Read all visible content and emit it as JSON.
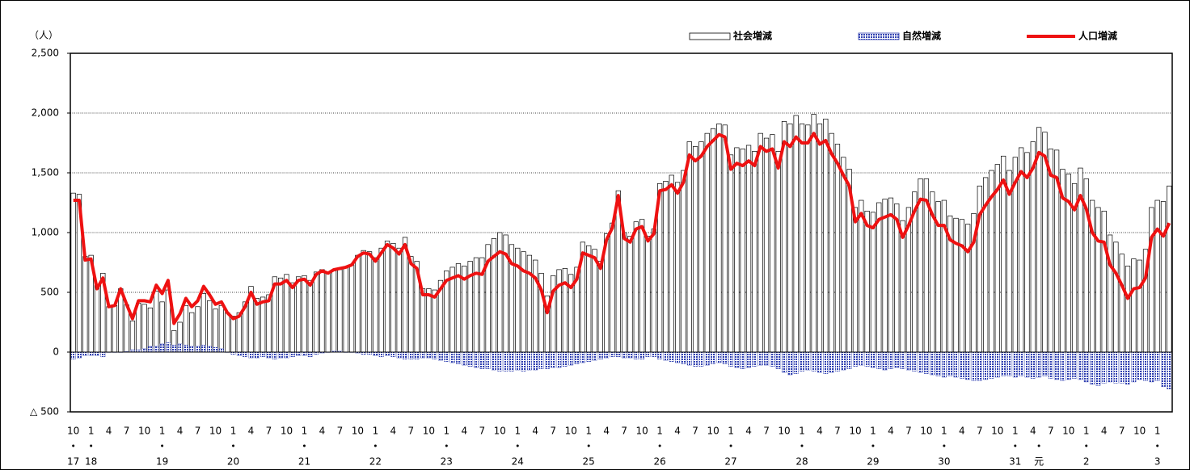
{
  "chart_data": {
    "type": "bar_line",
    "y_axis_label": "（人）",
    "categories": [
      "10",
      null,
      null,
      "1",
      null,
      null,
      "4",
      null,
      null,
      "7",
      null,
      null,
      "10",
      null,
      null,
      "1",
      null,
      null,
      "4",
      null,
      null,
      "7",
      null,
      null,
      "10",
      null,
      null,
      "1",
      null,
      null,
      "4",
      null,
      null,
      "7",
      null,
      null,
      "10",
      null,
      null,
      "1",
      null,
      null,
      "4",
      null,
      null,
      "7",
      null,
      null,
      "10",
      null,
      null,
      "1",
      null,
      null,
      "4",
      null,
      null,
      "7",
      null,
      null,
      "10",
      null,
      null,
      "1",
      null,
      null,
      "4",
      null,
      null,
      "7",
      null,
      null,
      "10",
      null,
      null,
      "1",
      null,
      null,
      "4",
      null,
      null,
      "7",
      null,
      null,
      "10",
      null,
      null,
      "1",
      null,
      null,
      "4",
      null,
      null,
      "7",
      null,
      null,
      "10",
      null,
      null,
      "1",
      null,
      null,
      "4",
      null,
      null,
      "7",
      null,
      null,
      "10",
      null,
      null,
      "1",
      null,
      null,
      "4",
      null,
      null,
      "7",
      null,
      null,
      "10",
      null,
      null,
      "1",
      null,
      null,
      "4",
      null,
      null,
      "7",
      null,
      null,
      "10",
      null,
      null,
      "1",
      null,
      null,
      "4",
      null,
      null,
      "7",
      null,
      null,
      "10",
      null,
      null,
      "1",
      null,
      null,
      "4",
      null,
      null,
      "7",
      null,
      null,
      "10",
      null,
      null,
      "1",
      null,
      null,
      "4",
      null,
      null,
      "7",
      null,
      null,
      "10",
      null,
      null,
      "1",
      null,
      null,
      "4",
      null,
      null,
      "7",
      null,
      null,
      "10",
      null,
      null,
      "1",
      null,
      null
    ],
    "year_labels": [
      "17",
      null,
      null,
      "18",
      null,
      null,
      null,
      null,
      null,
      null,
      null,
      null,
      null,
      null,
      null,
      "19",
      null,
      null,
      null,
      null,
      null,
      null,
      null,
      null,
      null,
      null,
      null,
      "20",
      null,
      null,
      null,
      null,
      null,
      null,
      null,
      null,
      null,
      null,
      null,
      "21",
      null,
      null,
      null,
      null,
      null,
      null,
      null,
      null,
      null,
      null,
      null,
      "22",
      null,
      null,
      null,
      null,
      null,
      null,
      null,
      null,
      null,
      null,
      null,
      "23",
      null,
      null,
      null,
      null,
      null,
      null,
      null,
      null,
      null,
      null,
      null,
      "24",
      null,
      null,
      null,
      null,
      null,
      null,
      null,
      null,
      null,
      null,
      null,
      "25",
      null,
      null,
      null,
      null,
      null,
      null,
      null,
      null,
      null,
      null,
      null,
      "26",
      null,
      null,
      null,
      null,
      null,
      null,
      null,
      null,
      null,
      null,
      null,
      "27",
      null,
      null,
      null,
      null,
      null,
      null,
      null,
      null,
      null,
      null,
      null,
      "28",
      null,
      null,
      null,
      null,
      null,
      null,
      null,
      null,
      null,
      null,
      null,
      "29",
      null,
      null,
      null,
      null,
      null,
      null,
      null,
      null,
      null,
      null,
      null,
      "30",
      null,
      null,
      null,
      null,
      null,
      null,
      null,
      null,
      null,
      null,
      null,
      "31",
      null,
      null,
      null,
      "元",
      null,
      null,
      null,
      null,
      null,
      null,
      null,
      "2",
      null,
      null,
      null,
      null,
      null,
      null,
      null,
      null,
      null,
      null,
      null,
      "3",
      null,
      null
    ],
    "series": [
      {
        "name": "社会増減",
        "kind": "bar",
        "color": "#ffffff",
        "values": [
          1330,
          1320,
          800,
          810,
          560,
          660,
          380,
          390,
          530,
          395,
          260,
          410,
          400,
          370,
          510,
          420,
          520,
          180,
          250,
          390,
          330,
          380,
          490,
          430,
          360,
          390,
          330,
          300,
          330,
          420,
          550,
          450,
          460,
          480,
          630,
          620,
          650,
          580,
          630,
          640,
          600,
          670,
          690,
          660,
          680,
          690,
          710,
          730,
          810,
          850,
          840,
          790,
          870,
          930,
          910,
          870,
          960,
          800,
          760,
          530,
          530,
          520,
          600,
          680,
          710,
          740,
          720,
          760,
          790,
          790,
          900,
          950,
          1000,
          980,
          900,
          870,
          840,
          810,
          770,
          660,
          470,
          640,
          690,
          700,
          650,
          710,
          920,
          890,
          860,
          760,
          990,
          1080,
          1350,
          1000,
          970,
          1090,
          1110,
          970,
          1030,
          1410,
          1430,
          1480,
          1420,
          1520,
          1760,
          1720,
          1760,
          1830,
          1870,
          1910,
          1900,
          1650,
          1710,
          1700,
          1730,
          1680,
          1830,
          1790,
          1820,
          1680,
          1930,
          1910,
          1980,
          1910,
          1900,
          1990,
          1910,
          1950,
          1830,
          1740,
          1630,
          1530,
          1210,
          1270,
          1180,
          1170,
          1250,
          1280,
          1290,
          1240,
          1100,
          1210,
          1340,
          1450,
          1450,
          1340,
          1260,
          1270,
          1140,
          1120,
          1110,
          1070,
          1160,
          1390,
          1460,
          1520,
          1570,
          1640,
          1520,
          1630,
          1710,
          1670,
          1760,
          1880,
          1840,
          1700,
          1690,
          1530,
          1490,
          1410,
          1540,
          1450,
          1270,
          1210,
          1180,
          980,
          920,
          820,
          720,
          780,
          770,
          860,
          1210,
          1270,
          1260,
          1390
        ]
      },
      {
        "name": "自然増減",
        "kind": "bar",
        "color": "#3040b0",
        "values": [
          -60,
          -50,
          -30,
          -30,
          -30,
          -40,
          0,
          0,
          0,
          5,
          20,
          20,
          30,
          50,
          50,
          70,
          80,
          60,
          70,
          60,
          50,
          50,
          60,
          50,
          40,
          30,
          0,
          -20,
          -30,
          -40,
          -50,
          -50,
          -40,
          -50,
          -60,
          -50,
          -50,
          -40,
          -30,
          -30,
          -40,
          -20,
          -10,
          0,
          10,
          10,
          0,
          0,
          -10,
          -20,
          -20,
          -30,
          -40,
          -30,
          -40,
          -50,
          -60,
          -60,
          -60,
          -50,
          -50,
          -60,
          -70,
          -80,
          -90,
          -100,
          -110,
          -120,
          -130,
          -140,
          -140,
          -150,
          -160,
          -160,
          -160,
          -150,
          -160,
          -150,
          -150,
          -140,
          -140,
          -130,
          -130,
          -120,
          -110,
          -100,
          -90,
          -80,
          -70,
          -60,
          -50,
          -40,
          -40,
          -50,
          -50,
          -60,
          -60,
          -40,
          -40,
          -60,
          -70,
          -80,
          -90,
          -100,
          -110,
          -120,
          -120,
          -110,
          -100,
          -90,
          -100,
          -120,
          -130,
          -140,
          -130,
          -120,
          -110,
          -110,
          -120,
          -140,
          -170,
          -190,
          -180,
          -160,
          -150,
          -160,
          -170,
          -180,
          -170,
          -160,
          -150,
          -140,
          -120,
          -110,
          -120,
          -130,
          -140,
          -150,
          -140,
          -130,
          -140,
          -150,
          -160,
          -170,
          -180,
          -190,
          -200,
          -210,
          -200,
          -210,
          -220,
          -230,
          -240,
          -240,
          -230,
          -220,
          -210,
          -200,
          -200,
          -210,
          -200,
          -210,
          -220,
          -210,
          -200,
          -220,
          -230,
          -240,
          -230,
          -220,
          -230,
          -250,
          -270,
          -280,
          -260,
          -250,
          -260,
          -260,
          -270,
          -250,
          -230,
          -240,
          -250,
          -240,
          -290,
          -310
        ]
      },
      {
        "name": "人口増減",
        "kind": "line",
        "color": "#ee1111",
        "values": [
          1270,
          1270,
          770,
          780,
          530,
          620,
          380,
          390,
          530,
          400,
          280,
          430,
          430,
          420,
          560,
          490,
          600,
          240,
          320,
          450,
          380,
          430,
          550,
          480,
          400,
          420,
          330,
          280,
          300,
          380,
          500,
          400,
          420,
          430,
          570,
          570,
          600,
          540,
          600,
          610,
          560,
          650,
          680,
          660,
          690,
          700,
          710,
          730,
          800,
          830,
          820,
          760,
          830,
          900,
          870,
          820,
          900,
          740,
          700,
          480,
          480,
          460,
          530,
          600,
          620,
          640,
          610,
          640,
          660,
          650,
          760,
          800,
          840,
          820,
          740,
          720,
          680,
          660,
          620,
          520,
          330,
          510,
          560,
          580,
          540,
          610,
          830,
          810,
          790,
          700,
          940,
          1040,
          1310,
          950,
          920,
          1030,
          1050,
          930,
          990,
          1350,
          1360,
          1400,
          1330,
          1420,
          1650,
          1600,
          1640,
          1720,
          1770,
          1820,
          1800,
          1530,
          1580,
          1560,
          1600,
          1560,
          1720,
          1680,
          1700,
          1540,
          1760,
          1720,
          1800,
          1750,
          1750,
          1830,
          1740,
          1770,
          1660,
          1580,
          1480,
          1390,
          1090,
          1160,
          1060,
          1040,
          1110,
          1130,
          1150,
          1110,
          960,
          1060,
          1180,
          1280,
          1270,
          1150,
          1060,
          1060,
          940,
          910,
          890,
          840,
          920,
          1150,
          1230,
          1300,
          1360,
          1440,
          1320,
          1420,
          1510,
          1460,
          1540,
          1670,
          1640,
          1480,
          1460,
          1290,
          1260,
          1190,
          1310,
          1200,
          1000,
          930,
          920,
          730,
          660,
          560,
          450,
          530,
          540,
          620,
          960,
          1030,
          970,
          1080
        ]
      }
    ],
    "ylim": [
      -500,
      2500
    ],
    "yticks": [
      {
        "value": -500,
        "label": "△ 500"
      },
      0,
      500,
      {
        "value": 1000,
        "label": "1,000"
      },
      {
        "value": 1500,
        "label": "1,500"
      },
      {
        "value": 2000,
        "label": "2,000"
      },
      {
        "value": 2500,
        "label": "2,500"
      }
    ],
    "grid": true
  }
}
